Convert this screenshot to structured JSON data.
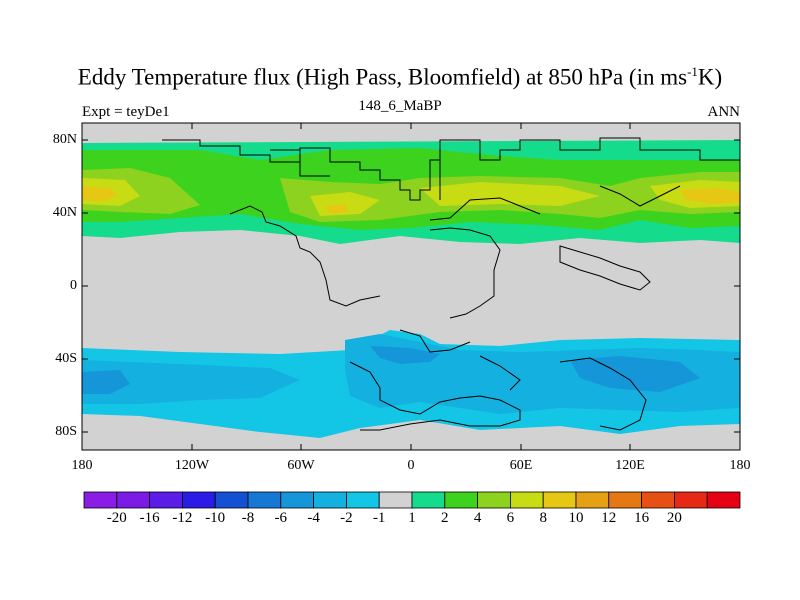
{
  "title_main": "Eddy Temperature flux (High Pass, Bloomfield) at 850 hPa (in ms",
  "title_sup": "-1",
  "title_end": "K)",
  "subtitle_left": "Expt = teyDe1",
  "subtitle_center": "148_6_MaBP",
  "subtitle_right": "ANN",
  "y_ticks": [
    "80N",
    "40N",
    "0",
    "40S",
    "80S"
  ],
  "x_ticks": [
    "180",
    "120W",
    "60W",
    "0",
    "60E",
    "120E",
    "180"
  ],
  "colorbar": {
    "colors": [
      "#8a1ce6",
      "#7a1ce6",
      "#5a1ce6",
      "#2a1ce6",
      "#1450d4",
      "#1478d4",
      "#1496d8",
      "#14b0e0",
      "#14c6e6",
      "#d2d2d2",
      "#14dc8c",
      "#3cd21e",
      "#8cd21e",
      "#c8dc14",
      "#e6c814",
      "#e6a014",
      "#e67814",
      "#e65014",
      "#e62814",
      "#e60014"
    ],
    "labels": [
      "-20",
      "-16",
      "-12",
      "-10",
      "-8",
      "-6",
      "-4",
      "-2",
      "-1",
      "1",
      "2",
      "4",
      "6",
      "8",
      "10",
      "12",
      "16",
      "20"
    ]
  },
  "map_colors": {
    "land": "#d2d2d2",
    "pos_weak": "#14dc8c",
    "pos_mid": "#3cd21e",
    "pos_high": "#8cd21e",
    "pos_strong": "#c8dc14",
    "pos_peak": "#e6c814",
    "neg_weak": "#14c6e6",
    "neg_mid": "#14b0e0",
    "neg_strong": "#1496d8",
    "coast": "#000000"
  }
}
